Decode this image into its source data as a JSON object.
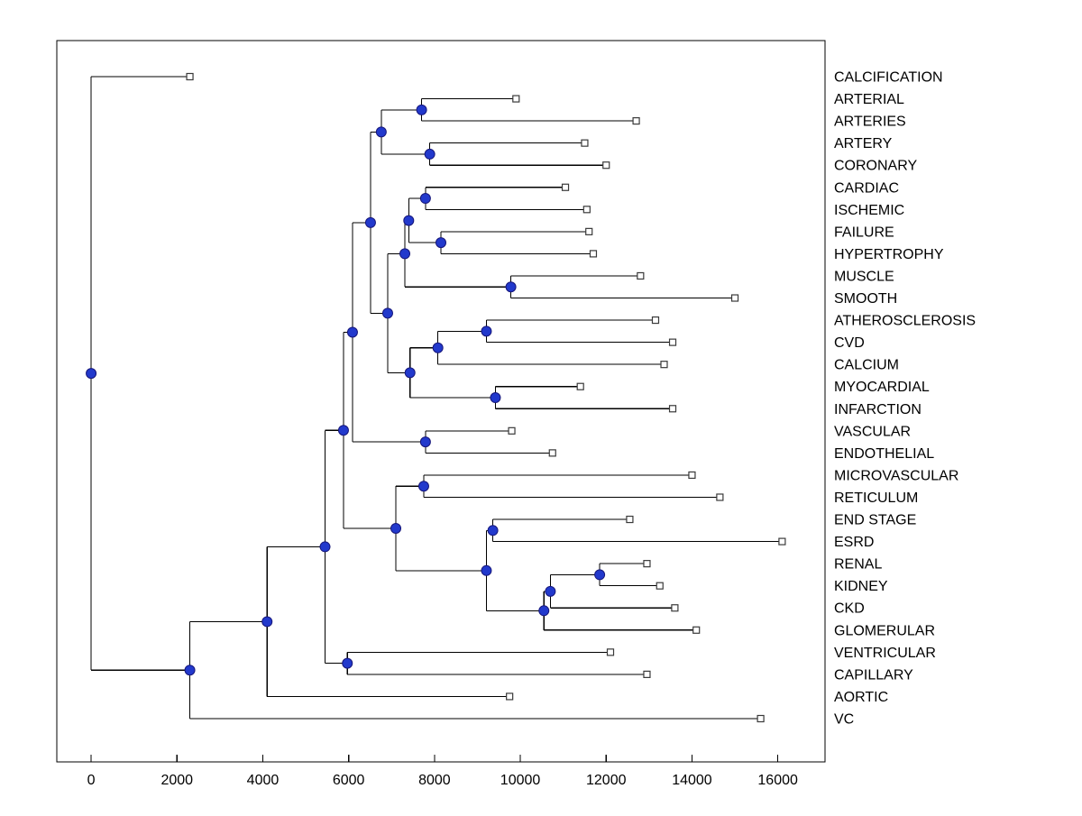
{
  "figure": {
    "background": "#ffffff"
  },
  "chart_data": {
    "type": "dendrogram",
    "title": "",
    "xlabel": "",
    "ylabel": "",
    "orientation": "root-left",
    "grid": false,
    "xlim": [
      -800,
      17100
    ],
    "x_ticks": [
      0,
      2000,
      4000,
      6000,
      8000,
      10000,
      12000,
      14000,
      16000
    ],
    "line_color": "#000000",
    "leaf_marker": {
      "shape": "open-square",
      "fill": "#ffffff",
      "stroke": "#3a3a3a",
      "size": 7
    },
    "node_marker": {
      "shape": "filled-circle",
      "fill": "#2239cc",
      "stroke": "#16167a",
      "radius": 5.5
    },
    "leaf_order": [
      "CALCIFICATION",
      "ARTERIAL",
      "ARTERIES",
      "ARTERY",
      "CORONARY",
      "CARDIAC",
      "ISCHEMIC",
      "FAILURE",
      "HYPERTROPHY",
      "MUSCLE",
      "SMOOTH",
      "ATHEROSCLEROSIS",
      "CVD",
      "CALCIUM",
      "MYOCARDIAL",
      "INFARCTION",
      "VASCULAR",
      "ENDOTHELIAL",
      "MICROVASCULAR",
      "RETICULUM",
      "END STAGE",
      "ESRD",
      "RENAL",
      "KIDNEY",
      "CKD",
      "GLOMERULAR",
      "VENTRICULAR",
      "CAPILLARY",
      "AORTIC",
      "VC"
    ],
    "tree": {
      "d": 0,
      "children": [
        {
          "leaf": "CALCIFICATION",
          "d": 2300
        },
        {
          "d": 2300,
          "children": [
            {
              "d": 4100,
              "children": [
                {
                  "d": 5450,
                  "children": [
                    {
                      "d": 5880,
                      "children": [
                        {
                          "d": 6090,
                          "children": [
                            {
                              "d": 6510,
                              "children": [
                                {
                                  "d": 6760,
                                  "children": [
                                    {
                                      "d": 7700,
                                      "children": [
                                        {
                                          "leaf": "ARTERIAL",
                                          "d": 9900
                                        },
                                        {
                                          "leaf": "ARTERIES",
                                          "d": 12700
                                        }
                                      ]
                                    },
                                    {
                                      "d": 7890,
                                      "children": [
                                        {
                                          "leaf": "ARTERY",
                                          "d": 11500
                                        },
                                        {
                                          "leaf": "CORONARY",
                                          "d": 12000
                                        }
                                      ]
                                    }
                                  ]
                                },
                                {
                                  "d": 6910,
                                  "children": [
                                    {
                                      "d": 7310,
                                      "children": [
                                        {
                                          "d": 7400,
                                          "children": [
                                            {
                                              "d": 7790,
                                              "children": [
                                                {
                                                  "leaf": "CARDIAC",
                                                  "d": 11050
                                                },
                                                {
                                                  "leaf": "ISCHEMIC",
                                                  "d": 11550
                                                }
                                              ]
                                            },
                                            {
                                              "d": 8150,
                                              "children": [
                                                {
                                                  "leaf": "FAILURE",
                                                  "d": 11600
                                                },
                                                {
                                                  "leaf": "HYPERTROPHY",
                                                  "d": 11700
                                                }
                                              ]
                                            }
                                          ]
                                        },
                                        {
                                          "d": 9780,
                                          "children": [
                                            {
                                              "leaf": "MUSCLE",
                                              "d": 12800
                                            },
                                            {
                                              "leaf": "SMOOTH",
                                              "d": 15000
                                            }
                                          ]
                                        }
                                      ]
                                    },
                                    {
                                      "d": 7430,
                                      "children": [
                                        {
                                          "d": 8080,
                                          "children": [
                                            {
                                              "d": 9210,
                                              "children": [
                                                {
                                                  "leaf": "ATHEROSCLEROSIS",
                                                  "d": 13150
                                                },
                                                {
                                                  "leaf": "CVD",
                                                  "d": 13550
                                                }
                                              ]
                                            },
                                            {
                                              "leaf": "CALCIUM",
                                              "d": 13350
                                            }
                                          ]
                                        },
                                        {
                                          "d": 9420,
                                          "children": [
                                            {
                                              "leaf": "MYOCARDIAL",
                                              "d": 11400
                                            },
                                            {
                                              "leaf": "INFARCTION",
                                              "d": 13550
                                            }
                                          ]
                                        }
                                      ]
                                    }
                                  ]
                                }
                              ]
                            },
                            {
                              "d": 7790,
                              "children": [
                                {
                                  "leaf": "VASCULAR",
                                  "d": 9800
                                },
                                {
                                  "leaf": "ENDOTHELIAL",
                                  "d": 10750
                                }
                              ]
                            }
                          ]
                        },
                        {
                          "d": 7100,
                          "children": [
                            {
                              "d": 7750,
                              "children": [
                                {
                                  "leaf": "MICROVASCULAR",
                                  "d": 14000
                                },
                                {
                                  "leaf": "RETICULUM",
                                  "d": 14650
                                }
                              ]
                            },
                            {
                              "d": 9210,
                              "children": [
                                {
                                  "d": 9360,
                                  "children": [
                                    {
                                      "leaf": "END STAGE",
                                      "d": 12550
                                    },
                                    {
                                      "leaf": "ESRD",
                                      "d": 16100
                                    }
                                  ]
                                },
                                {
                                  "d": 10550,
                                  "children": [
                                    {
                                      "d": 10700,
                                      "children": [
                                        {
                                          "d": 11850,
                                          "children": [
                                            {
                                              "leaf": "RENAL",
                                              "d": 12950
                                            },
                                            {
                                              "leaf": "KIDNEY",
                                              "d": 13250
                                            }
                                          ]
                                        },
                                        {
                                          "leaf": "CKD",
                                          "d": 13600
                                        }
                                      ]
                                    },
                                    {
                                      "leaf": "GLOMERULAR",
                                      "d": 14100
                                    }
                                  ]
                                }
                              ]
                            }
                          ]
                        }
                      ]
                    },
                    {
                      "d": 5970,
                      "children": [
                        {
                          "leaf": "VENTRICULAR",
                          "d": 12100
                        },
                        {
                          "leaf": "CAPILLARY",
                          "d": 12950
                        }
                      ]
                    }
                  ]
                },
                {
                  "leaf": "AORTIC",
                  "d": 9750
                }
              ]
            },
            {
              "leaf": "VC",
              "d": 15600
            }
          ]
        }
      ]
    }
  }
}
